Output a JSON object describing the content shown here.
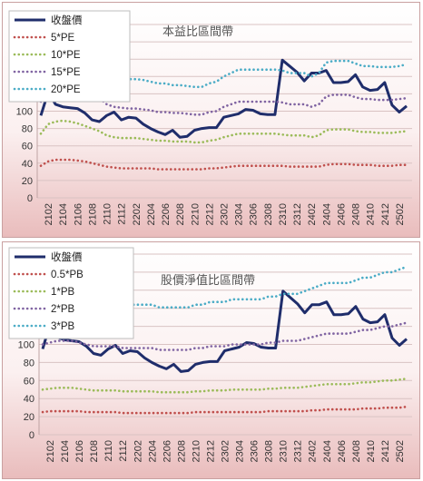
{
  "chart_data": [
    {
      "type": "line",
      "title": "本益比區間帶",
      "ylim": [
        0,
        200
      ],
      "yticks": [
        0,
        20,
        40,
        60,
        80,
        100,
        120,
        140,
        160,
        180,
        200
      ],
      "x_tick_labels": [
        "2102",
        "2104",
        "2106",
        "2108",
        "2110",
        "2112",
        "2202",
        "2204",
        "2206",
        "2208",
        "2210",
        "2212",
        "2302",
        "2304",
        "2306",
        "2308",
        "2310",
        "2312",
        "2402",
        "2404",
        "2406",
        "2408",
        "2410",
        "2412",
        "2502"
      ],
      "x_start": "2101",
      "x_end": "2503",
      "grid": true,
      "legend_position": "top-left",
      "series": [
        {
          "name": "收盤價",
          "color": "#1f2d6b",
          "style": "solid",
          "values": [
            95,
            122,
            108,
            105,
            104,
            103,
            98,
            90,
            88,
            95,
            99,
            90,
            93,
            92,
            85,
            80,
            76,
            73,
            78,
            70,
            71,
            78,
            80,
            81,
            81,
            93,
            95,
            97,
            102,
            101,
            97,
            96,
            96,
            159,
            152,
            145,
            135,
            144,
            144,
            147,
            133,
            133,
            134,
            142,
            128,
            124,
            125,
            133,
            107,
            99,
            106
          ]
        },
        {
          "name": "5*PE",
          "color": "#c0504d",
          "style": "dotted",
          "values": [
            37,
            42,
            44,
            44,
            44,
            43,
            42,
            40,
            38,
            36,
            35,
            34,
            34,
            34,
            34,
            34,
            33,
            33,
            33,
            33,
            33,
            33,
            33,
            34,
            34,
            35,
            36,
            37,
            37,
            37,
            37,
            37,
            37,
            37,
            36,
            36,
            36,
            36,
            36,
            38,
            39,
            39,
            39,
            38,
            38,
            38,
            37,
            37,
            37,
            38,
            38
          ]
        },
        {
          "name": "10*PE",
          "color": "#9bbb59",
          "style": "dotted",
          "values": [
            74,
            85,
            88,
            89,
            88,
            86,
            83,
            80,
            77,
            72,
            70,
            69,
            69,
            69,
            68,
            67,
            66,
            66,
            65,
            65,
            65,
            64,
            64,
            66,
            67,
            70,
            72,
            74,
            74,
            74,
            74,
            74,
            74,
            73,
            72,
            72,
            72,
            70,
            72,
            78,
            79,
            79,
            79,
            77,
            76,
            76,
            75,
            75,
            75,
            76,
            77
          ]
        },
        {
          "name": "15*PE",
          "color": "#8064a2",
          "style": "dotted",
          "values": [
            111,
            127,
            132,
            133,
            132,
            129,
            125,
            120,
            115,
            108,
            105,
            104,
            103,
            103,
            102,
            101,
            99,
            99,
            98,
            98,
            97,
            96,
            96,
            99,
            100,
            105,
            108,
            111,
            111,
            111,
            111,
            111,
            111,
            110,
            108,
            108,
            108,
            105,
            108,
            117,
            119,
            119,
            119,
            116,
            114,
            114,
            113,
            113,
            113,
            114,
            115
          ]
        },
        {
          "name": "20*PE",
          "color": "#4bacc6",
          "style": "dotted",
          "values": [
            148,
            169,
            176,
            177,
            176,
            172,
            167,
            160,
            153,
            144,
            140,
            138,
            137,
            137,
            136,
            134,
            132,
            132,
            130,
            130,
            129,
            128,
            128,
            132,
            134,
            140,
            144,
            148,
            148,
            148,
            148,
            148,
            148,
            147,
            144,
            144,
            144,
            140,
            144,
            156,
            158,
            158,
            158,
            155,
            152,
            152,
            151,
            151,
            151,
            152,
            154
          ]
        }
      ]
    },
    {
      "type": "line",
      "title": "股價淨值比區間帶",
      "ylim": [
        0,
        200
      ],
      "yticks": [
        0,
        20,
        40,
        60,
        80,
        100,
        120,
        140,
        160,
        180,
        200
      ],
      "x_tick_labels": [
        "2102",
        "2104",
        "2106",
        "2108",
        "2110",
        "2112",
        "2202",
        "2204",
        "2206",
        "2208",
        "2210",
        "2212",
        "2302",
        "2304",
        "2306",
        "2308",
        "2310",
        "2312",
        "2402",
        "2404",
        "2406",
        "2408",
        "2410",
        "2412",
        "2502"
      ],
      "x_start": "2101",
      "x_end": "2503",
      "grid": true,
      "legend_position": "top-left",
      "series": [
        {
          "name": "收盤價",
          "color": "#1f2d6b",
          "style": "solid",
          "values": [
            95,
            122,
            108,
            105,
            104,
            103,
            98,
            90,
            88,
            95,
            99,
            90,
            93,
            92,
            85,
            80,
            76,
            73,
            78,
            70,
            71,
            78,
            80,
            81,
            81,
            93,
            95,
            97,
            102,
            101,
            97,
            96,
            96,
            159,
            152,
            145,
            135,
            144,
            144,
            147,
            133,
            133,
            134,
            142,
            128,
            124,
            125,
            133,
            107,
            99,
            106
          ]
        },
        {
          "name": "0.5*PB",
          "color": "#c0504d",
          "style": "dotted",
          "values": [
            25,
            26,
            26,
            26,
            26,
            26,
            25,
            25,
            25,
            25,
            25,
            24,
            24,
            24,
            24,
            24,
            24,
            24,
            24,
            24,
            24,
            25,
            25,
            25,
            25,
            25,
            25,
            25,
            25,
            25,
            25,
            26,
            26,
            26,
            26,
            26,
            26,
            27,
            27,
            28,
            28,
            28,
            28,
            28,
            29,
            29,
            29,
            30,
            30,
            30,
            31
          ]
        },
        {
          "name": "1*PB",
          "color": "#9bbb59",
          "style": "dotted",
          "values": [
            50,
            51,
            52,
            52,
            52,
            51,
            50,
            49,
            49,
            49,
            49,
            48,
            48,
            48,
            48,
            48,
            47,
            47,
            47,
            47,
            47,
            48,
            48,
            49,
            49,
            49,
            50,
            50,
            50,
            50,
            50,
            51,
            51,
            52,
            52,
            52,
            53,
            54,
            55,
            56,
            56,
            56,
            56,
            57,
            58,
            58,
            59,
            60,
            60,
            61,
            62
          ]
        },
        {
          "name": "2*PB",
          "color": "#8064a2",
          "style": "dotted",
          "values": [
            100,
            102,
            104,
            104,
            104,
            102,
            100,
            98,
            98,
            98,
            98,
            96,
            96,
            96,
            96,
            96,
            94,
            94,
            94,
            94,
            94,
            96,
            96,
            98,
            98,
            98,
            100,
            100,
            100,
            100,
            100,
            102,
            102,
            104,
            104,
            104,
            106,
            108,
            110,
            112,
            112,
            112,
            112,
            114,
            116,
            116,
            118,
            120,
            120,
            122,
            124
          ]
        },
        {
          "name": "3*PB",
          "color": "#4bacc6",
          "style": "dotted",
          "values": [
            150,
            153,
            156,
            156,
            156,
            153,
            150,
            147,
            147,
            147,
            147,
            144,
            144,
            144,
            144,
            144,
            141,
            141,
            141,
            141,
            141,
            144,
            144,
            147,
            147,
            147,
            150,
            150,
            150,
            150,
            150,
            153,
            153,
            156,
            156,
            156,
            159,
            162,
            165,
            168,
            168,
            168,
            168,
            171,
            174,
            174,
            177,
            180,
            180,
            183,
            186
          ]
        }
      ]
    }
  ]
}
